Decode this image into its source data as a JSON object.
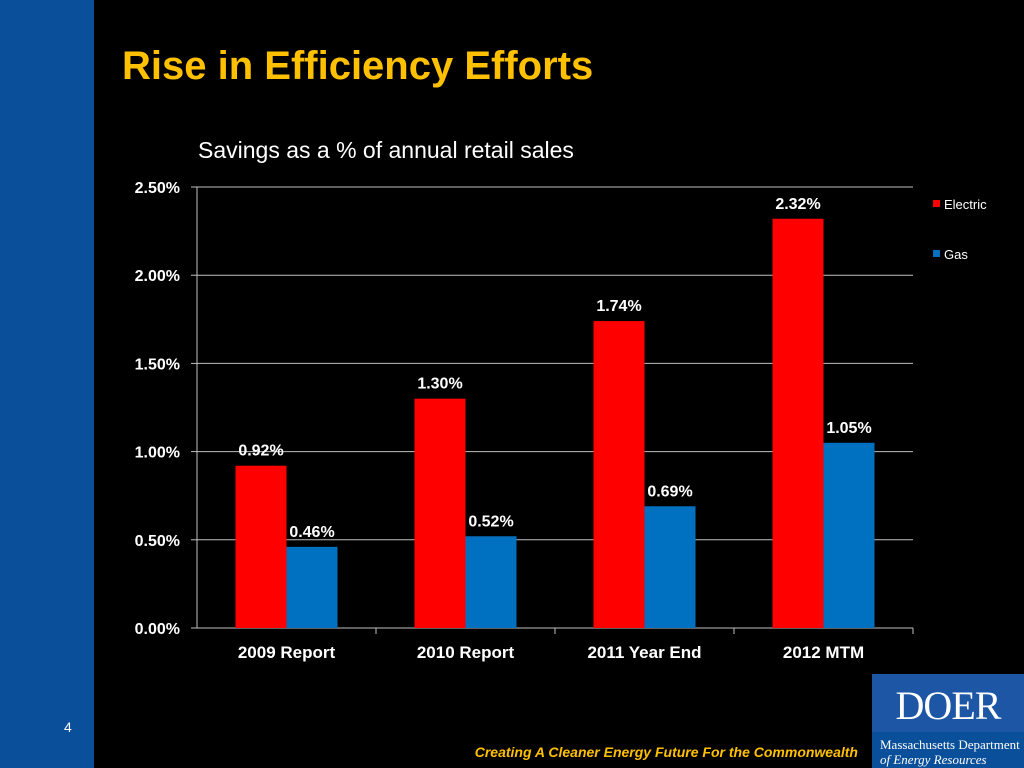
{
  "slide": {
    "title": "Rise in Efficiency Efforts",
    "number": "4",
    "tagline": "Creating A Cleaner Energy Future For the Commonwealth"
  },
  "logo": {
    "wordmark": "DOER",
    "line1": "Massachusetts Department",
    "line2": "of Energy Resources"
  },
  "colors": {
    "electric": "#ff0000",
    "gas": "#0070c0",
    "title": "#ffc000",
    "band": "#0a4f9a"
  },
  "chart_data": {
    "type": "bar",
    "title": "Savings as a % of annual retail sales",
    "categories": [
      "2009 Report",
      "2010 Report",
      "2011 Year End",
      "2012 MTM"
    ],
    "series": [
      {
        "name": "Electric",
        "values": [
          0.92,
          1.3,
          1.74,
          2.32
        ],
        "labels": [
          "0.92%",
          "1.30%",
          "1.74%",
          "2.32%"
        ]
      },
      {
        "name": "Gas",
        "values": [
          0.46,
          0.52,
          0.69,
          1.05
        ],
        "labels": [
          "0.46%",
          "0.52%",
          "0.69%",
          "1.05%"
        ]
      }
    ],
    "yticks": [
      "0.00%",
      "0.50%",
      "1.00%",
      "1.50%",
      "2.00%",
      "2.50%"
    ],
    "ylim": [
      0,
      2.5
    ],
    "grid": true,
    "legend": "right"
  }
}
